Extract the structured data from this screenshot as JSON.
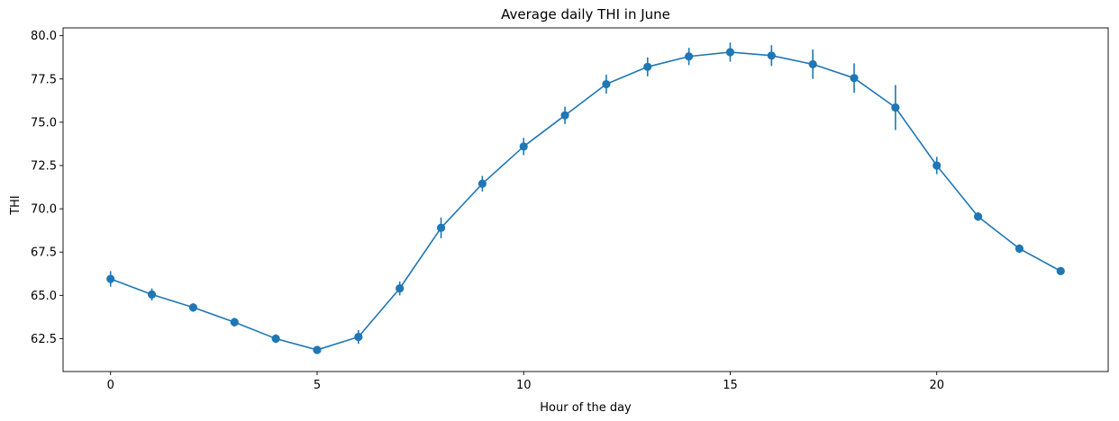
{
  "chart_data": {
    "type": "line",
    "title": "Average daily THI in June",
    "xlabel": "Hour of the day",
    "ylabel": "THI",
    "xlim": [
      -1.15,
      24.15
    ],
    "ylim": [
      60.6,
      80.45
    ],
    "xticks": [
      0,
      5,
      10,
      15,
      20
    ],
    "xtick_labels": [
      "0",
      "5",
      "10",
      "15",
      "20"
    ],
    "yticks": [
      62.5,
      65.0,
      67.5,
      70.0,
      72.5,
      75.0,
      77.5,
      80.0
    ],
    "ytick_labels": [
      "62.5",
      "65.0",
      "67.5",
      "70.0",
      "72.5",
      "75.0",
      "77.5",
      "80.0"
    ],
    "grid": false,
    "color": "#1f77b4",
    "series": [
      {
        "x": [
          0,
          1,
          2,
          3,
          4,
          5,
          6,
          7,
          8,
          9,
          10,
          11,
          12,
          13,
          14,
          15,
          16,
          17,
          18,
          19,
          20,
          21,
          22,
          23
        ],
        "y": [
          65.95,
          65.05,
          64.3,
          63.45,
          62.5,
          61.85,
          62.6,
          65.4,
          68.9,
          71.45,
          73.6,
          75.4,
          77.2,
          78.2,
          78.8,
          79.05,
          78.85,
          78.35,
          77.55,
          75.85,
          72.5,
          69.55,
          67.7,
          66.4
        ],
        "err": [
          0.45,
          0.35,
          0.25,
          0.25,
          0.25,
          0.2,
          0.4,
          0.4,
          0.6,
          0.45,
          0.5,
          0.5,
          0.55,
          0.55,
          0.5,
          0.55,
          0.6,
          0.85,
          0.85,
          1.3,
          0.5,
          0.25,
          0.25,
          0.2
        ]
      }
    ]
  }
}
